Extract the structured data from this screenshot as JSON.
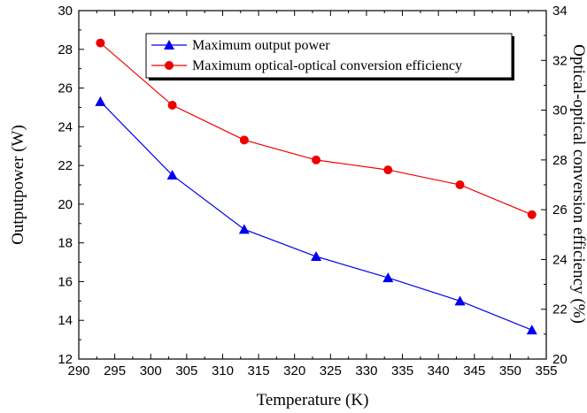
{
  "chart_data": {
    "type": "line",
    "x": [
      293,
      303,
      313,
      323,
      333,
      343,
      353
    ],
    "xlabel": "Temperature (K)",
    "ylabel_left": "Outputpower (W)",
    "ylabel_right": "Optical-optical conversion efficiency (%)",
    "xlim": [
      290,
      355
    ],
    "ylim_left": [
      12,
      30
    ],
    "ylim_right": [
      20,
      34
    ],
    "x_ticks": [
      290,
      295,
      300,
      305,
      310,
      315,
      320,
      325,
      330,
      335,
      340,
      345,
      350,
      355
    ],
    "y_ticks_left": [
      12,
      14,
      16,
      18,
      20,
      22,
      24,
      26,
      28,
      30
    ],
    "y_ticks_right": [
      20,
      22,
      24,
      26,
      28,
      30,
      32,
      34
    ],
    "grid": false,
    "legend_position": "top-right",
    "series": [
      {
        "name": "Maximum output power",
        "axis": "left",
        "color": "#0000ee",
        "marker": "triangle",
        "values": [
          25.3,
          21.5,
          18.7,
          17.3,
          16.2,
          15.0,
          13.5
        ]
      },
      {
        "name": "Maximum optical-optical conversion efficiency",
        "axis": "right",
        "color": "#ee0000",
        "marker": "circle",
        "values": [
          32.7,
          30.2,
          28.8,
          28.0,
          27.6,
          27.0,
          25.8
        ]
      }
    ]
  }
}
